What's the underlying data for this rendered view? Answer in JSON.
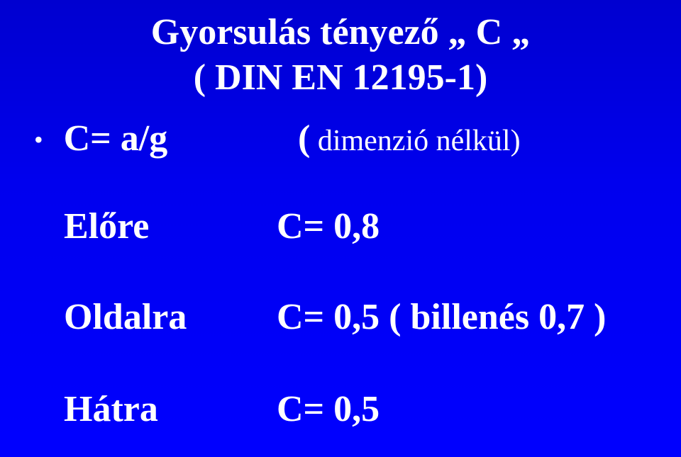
{
  "title": {
    "line1": "Gyorsulás tényező „  C   „",
    "line2": "( DIN EN 12195-1)"
  },
  "formula": {
    "bullet": "•",
    "left": "C= a/g",
    "paren": "(",
    "note": " dimenzió nélkül)"
  },
  "rows": {
    "forward": {
      "label": "Előre",
      "value": "C= 0,8"
    },
    "side": {
      "label": "Oldalra",
      "value": "C= 0,5   ( billenés 0,7 )"
    },
    "back": {
      "label": "Hátra",
      "value": "C= 0,5"
    }
  },
  "colors": {
    "text": "#ffffff",
    "bg_top": "#0000d0",
    "bg_bottom": "#0000ff"
  }
}
